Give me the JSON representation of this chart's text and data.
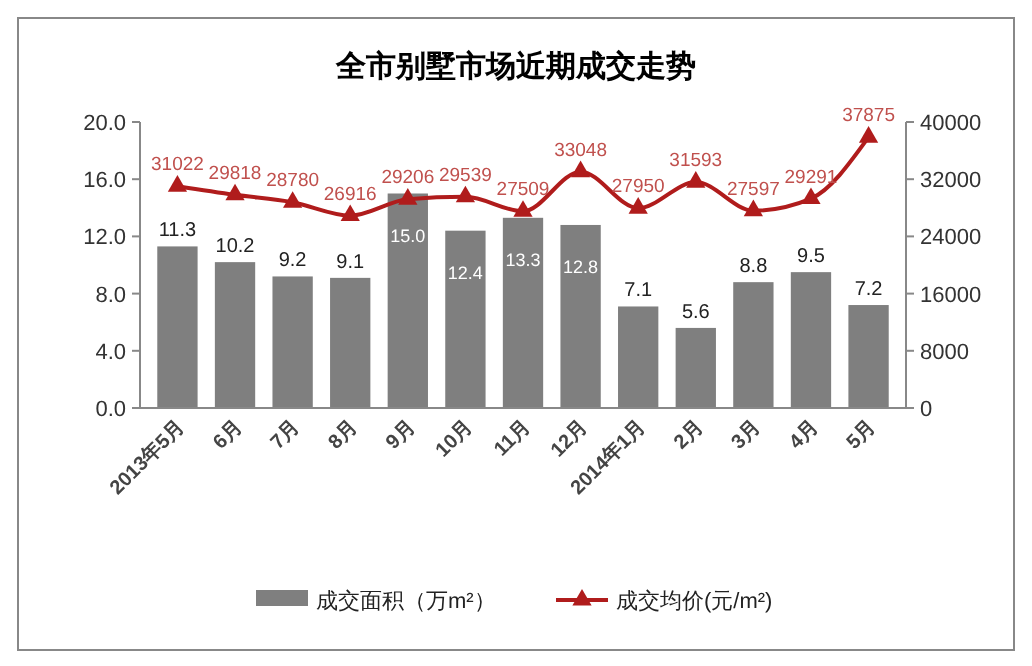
{
  "chart_data": {
    "type": "bar",
    "title": "全市别墅市场近期成交走势",
    "categories": [
      "2013年5月",
      "6月",
      "7月",
      "8月",
      "9月",
      "10月",
      "11月",
      "12月",
      "2014年1月",
      "2月",
      "3月",
      "4月",
      "5月"
    ],
    "series": [
      {
        "name": "成交面积（万m²）",
        "color": "#7f7f7f",
        "values": [
          11.3,
          10.2,
          9.2,
          9.1,
          15.0,
          12.4,
          13.3,
          12.8,
          7.1,
          5.6,
          8.8,
          9.5,
          7.2
        ],
        "value_labels": [
          "11.3",
          "10.2",
          "9.2",
          "9.1",
          "15.0",
          "12.4",
          "13.3",
          "12.8",
          "7.1",
          "5.6",
          "8.8",
          "9.5",
          "7.2"
        ]
      },
      {
        "name": "成交均价(元/m²)",
        "type": "line",
        "axis": "y2",
        "color": "#b01c1c",
        "marker": "triangle",
        "values": [
          31022,
          29818,
          28780,
          26916,
          29206,
          29539,
          27509,
          33048,
          27950,
          31593,
          27597,
          29291,
          37875
        ],
        "value_labels": [
          "31022",
          "29818",
          "28780",
          "26916",
          "29206",
          "29539",
          "27509",
          "33048",
          "27950",
          "31593",
          "27597",
          "29291",
          "37875"
        ]
      }
    ],
    "ylim": [
      0,
      20
    ],
    "yticks": [
      {
        "value": 0,
        "label": "0.0"
      },
      {
        "value": 4,
        "label": "4.0"
      },
      {
        "value": 8,
        "label": "8.0"
      },
      {
        "value": 12,
        "label": "12.0"
      },
      {
        "value": 16,
        "label": "16.0"
      },
      {
        "value": 20,
        "label": "20.0"
      }
    ],
    "y2lim": [
      0,
      40000
    ],
    "y2ticks": [
      0,
      8000,
      16000,
      24000,
      32000,
      40000
    ],
    "legend": "bottom",
    "grid": false
  }
}
